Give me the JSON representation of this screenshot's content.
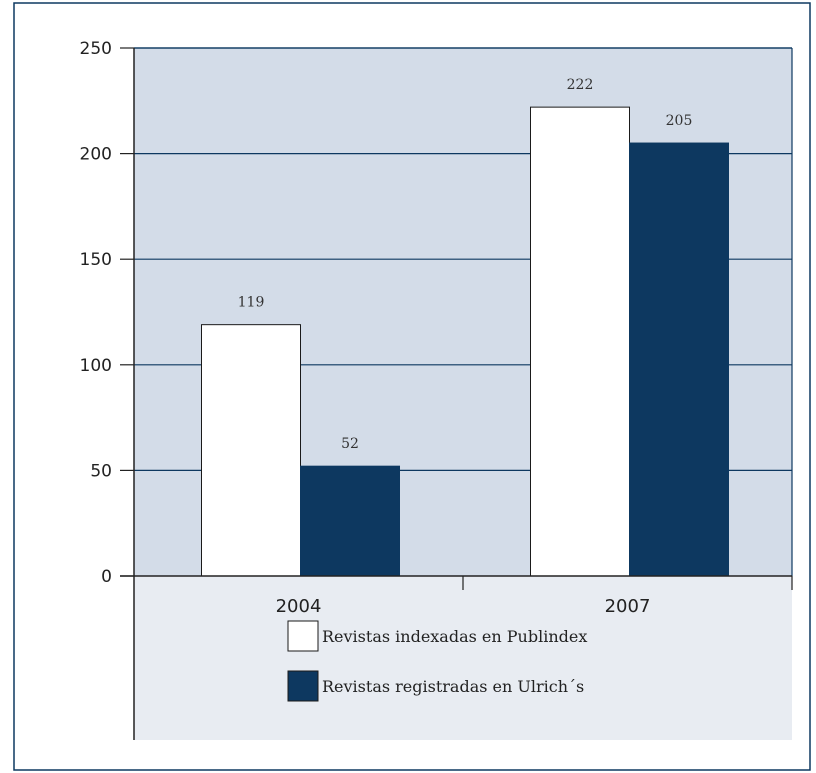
{
  "colors": {
    "plot_bg": "#d3dce8",
    "legend_bg": "#e8ecf2",
    "series_1": "#ffffff",
    "series_2": "#0d3860",
    "grid": "#0d3860",
    "axis": "#222222"
  },
  "chart_data": {
    "type": "bar",
    "title": "",
    "xlabel": "",
    "ylabel": "",
    "categories": [
      "2004",
      "2007"
    ],
    "ylim": [
      0,
      250
    ],
    "yticks": [
      0,
      50,
      100,
      150,
      200,
      250
    ],
    "grid": true,
    "legend_position": "bottom",
    "series": [
      {
        "name": "Revistas indexadas en Publindex",
        "values": [
          119,
          222
        ]
      },
      {
        "name": "Revistas registradas en Ulrich´s",
        "values": [
          52,
          205
        ]
      }
    ]
  }
}
